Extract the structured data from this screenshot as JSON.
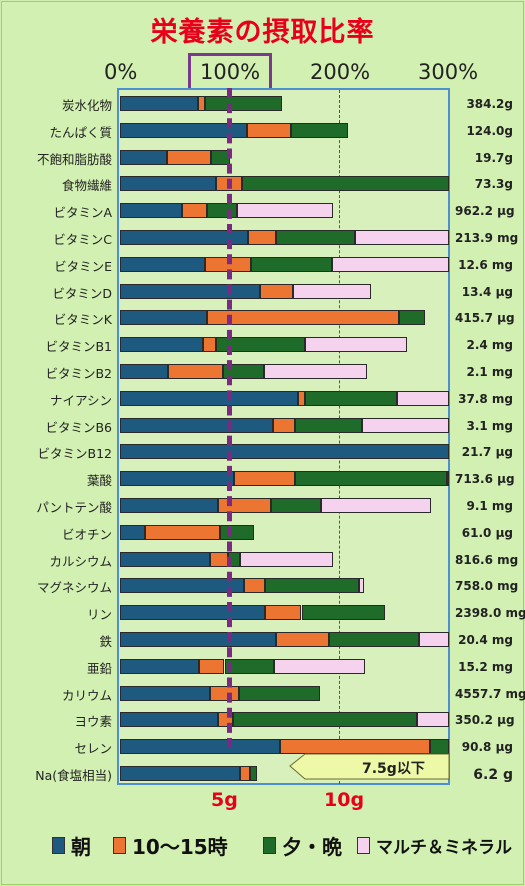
{
  "title": "栄養素の摂取比率",
  "colors": {
    "morning": "#1e5a80",
    "noon": "#ec7532",
    "evening": "#1f6b2a",
    "supplement": "#f5d3ef",
    "title": "#e8001b",
    "highlight": "#7b2a84",
    "target_arrow": "#eef9a8"
  },
  "chart_data": {
    "type": "bar",
    "orientation": "horizontal",
    "stacked": true,
    "xticks": [
      "0%",
      "100%",
      "200%",
      "300%"
    ],
    "xlim": [
      0,
      300
    ],
    "reference_line": "100%",
    "series": [
      {
        "name": "朝"
      },
      {
        "name": "10～15時"
      },
      {
        "name": "夕・晩"
      },
      {
        "name": "マルチ＆ミネラル"
      }
    ],
    "rows": [
      {
        "label": "炭水化物",
        "value": "384.2g",
        "parts": [
          71,
          6,
          70,
          0
        ]
      },
      {
        "label": "たんぱく質",
        "value": "124.0g",
        "parts": [
          115,
          40,
          52,
          0
        ]
      },
      {
        "label": "不飽和脂肪酸",
        "value": "19.7g",
        "parts": [
          43,
          40,
          17,
          0
        ]
      },
      {
        "label": "食物繊維",
        "value": "73.3g",
        "parts": [
          87,
          24,
          189,
          0
        ]
      },
      {
        "label": "ビタミンA",
        "value": "962.2 μg",
        "parts": [
          56,
          23,
          27,
          88
        ]
      },
      {
        "label": "ビタミンC",
        "value": "213.9 mg",
        "parts": [
          116,
          26,
          72,
          86
        ]
      },
      {
        "label": "ビタミンE",
        "value": "12.6 mg",
        "parts": [
          77,
          42,
          74,
          107
        ]
      },
      {
        "label": "ビタミンD",
        "value": "13.4 μg",
        "parts": [
          127,
          30,
          0,
          71
        ]
      },
      {
        "label": "ビタミンK",
        "value": "415.7 μg",
        "parts": [
          79,
          175,
          23,
          0
        ]
      },
      {
        "label": "ビタミンB1",
        "value": "2.4 mg",
        "parts": [
          75,
          12,
          81,
          93
        ]
      },
      {
        "label": "ビタミンB2",
        "value": "2.1 mg",
        "parts": [
          44,
          50,
          37,
          94
        ]
      },
      {
        "label": "ナイアシン",
        "value": "37.8 mg",
        "parts": [
          162,
          6,
          84,
          48
        ]
      },
      {
        "label": "ビタミンB6",
        "value": "3.1 mg",
        "parts": [
          139,
          20,
          61,
          80
        ]
      },
      {
        "label": "ビタミンB12",
        "value": "21.7 μg",
        "parts": [
          300,
          0,
          0,
          0
        ]
      },
      {
        "label": "葉酸",
        "value": "713.6 μg",
        "parts": [
          104,
          55,
          138,
          3
        ]
      },
      {
        "label": "パントテン酸",
        "value": "9.1 mg",
        "parts": [
          89,
          48,
          46,
          100
        ]
      },
      {
        "label": "ビオチン",
        "value": "61.0 μg",
        "parts": [
          23,
          68,
          31,
          0
        ]
      },
      {
        "label": "カルシウム",
        "value": "816.6 mg",
        "parts": [
          82,
          16,
          11,
          85
        ]
      },
      {
        "label": "マグネシウム",
        "value": "758.0 mg",
        "parts": [
          113,
          19,
          85,
          5
        ]
      },
      {
        "label": "リン",
        "value": "2398.0 mg",
        "parts": [
          132,
          33,
          76,
          0
        ]
      },
      {
        "label": "鉄",
        "value": "20.4 mg",
        "parts": [
          142,
          48,
          82,
          28
        ]
      },
      {
        "label": "亜鉛",
        "value": "15.2 mg",
        "parts": [
          72,
          23,
          45,
          83
        ]
      },
      {
        "label": "カリウム",
        "value": "4557.7 mg",
        "parts": [
          82,
          26,
          74,
          0
        ]
      },
      {
        "label": "ヨウ素",
        "value": "350.2 μg",
        "parts": [
          89,
          14,
          167,
          30
        ]
      },
      {
        "label": "セレン",
        "value": "90.8 μg",
        "parts": [
          145,
          137,
          18,
          0
        ]
      },
      {
        "label": "Na(食塩相当)",
        "value": "6.2 g",
        "parts": [
          109,
          9,
          7,
          0
        ]
      }
    ],
    "salt_ticks": [
      "5g",
      "10g"
    ],
    "salt_target": "7.5g以下"
  }
}
